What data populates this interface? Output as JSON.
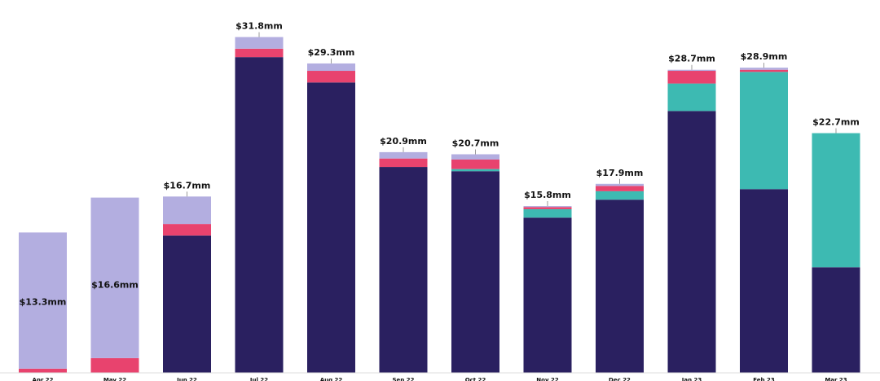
{
  "chart_data": {
    "type": "stacked_bar",
    "categories": [
      "Apr 22",
      "May 22",
      "Jun 22",
      "Jul 22",
      "Aug 22",
      "Sep 22",
      "Oct 22",
      "Nov 22",
      "Dec 22",
      "Jan 23",
      "Feb 23",
      "Mar 23"
    ],
    "series": [
      {
        "color": "#2a2060",
        "values": [
          0,
          0,
          13.0,
          29.9,
          27.5,
          19.5,
          19.1,
          14.7,
          16.4,
          24.8,
          17.4,
          10.0
        ]
      },
      {
        "color": "#3dbab2",
        "values": [
          0,
          0,
          0,
          0,
          0,
          0,
          0.2,
          0.8,
          0.8,
          2.6,
          11.1,
          12.7
        ]
      },
      {
        "color": "#e8436e",
        "values": [
          0.4,
          1.4,
          1.1,
          0.8,
          1.1,
          0.8,
          0.9,
          0.2,
          0.5,
          1.2,
          0.2,
          0
        ]
      },
      {
        "color": "#b3aee0",
        "values": [
          12.9,
          15.2,
          2.6,
          1.1,
          0.7,
          0.6,
          0.5,
          0.1,
          0.2,
          0.1,
          0.2,
          0
        ]
      }
    ],
    "totals": [
      13.3,
      16.6,
      16.7,
      31.8,
      29.3,
      20.9,
      20.7,
      15.8,
      17.9,
      28.7,
      28.9,
      22.7
    ],
    "total_labels": [
      "$13.3mm",
      "$16.6mm",
      "$16.7mm",
      "$31.8mm",
      "$29.3mm",
      "$20.9mm",
      "$20.7mm",
      "$15.8mm",
      "$17.9mm",
      "$28.7mm",
      "$28.9mm",
      "$22.7mm"
    ],
    "ylim": [
      0,
      35
    ]
  }
}
